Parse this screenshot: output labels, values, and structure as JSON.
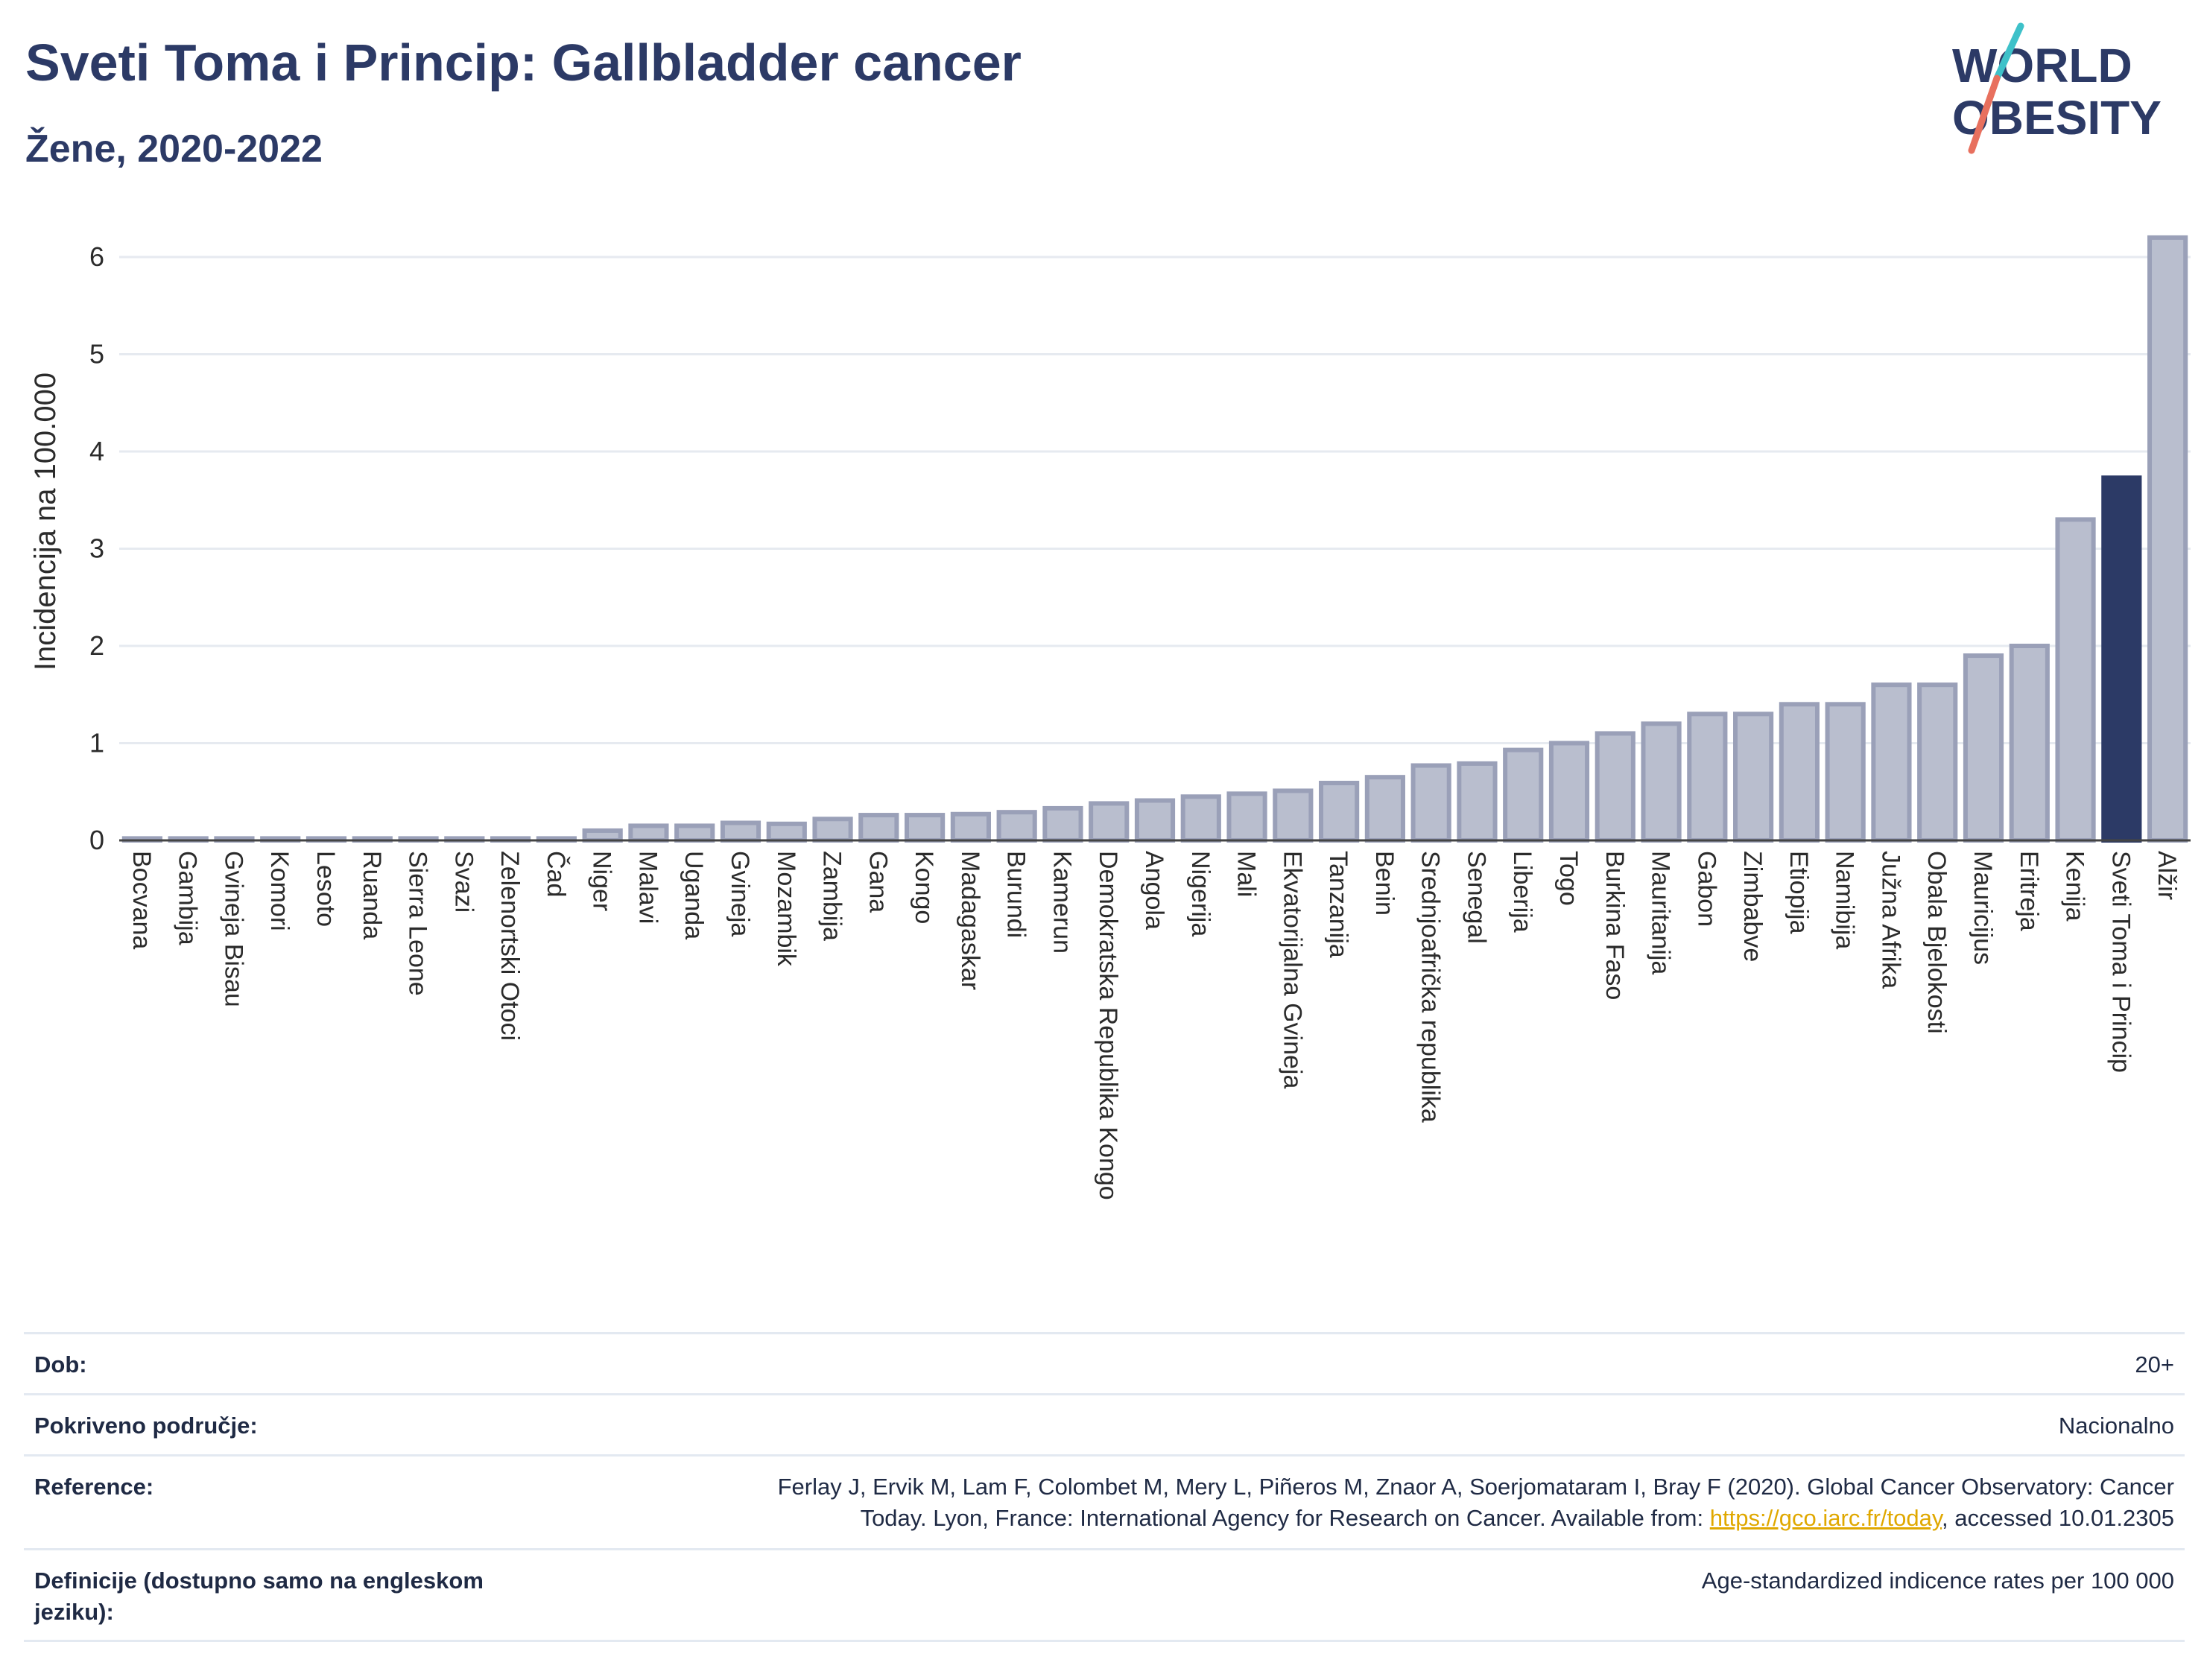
{
  "header": {
    "title": "Sveti Toma i Princip: Gallbladder cancer",
    "subtitle": "Žene, 2020-2022"
  },
  "logo": {
    "line1": "WORLD",
    "line2": "OBESITY",
    "colors": {
      "text": "#2c3a66",
      "slash_top": "#3ec1c9",
      "slash_bottom": "#e8705e"
    }
  },
  "chart_data": {
    "type": "bar",
    "ylabel": "Incidencija na 100.000",
    "xlabel": "",
    "ylim": [
      0,
      6.3
    ],
    "yticks": [
      0,
      1,
      2,
      3,
      4,
      5,
      6
    ],
    "grid": true,
    "highlight": "Sveti Toma i Princip",
    "colors": {
      "bar": "#b9bece",
      "bar_edge": "#9aa0b8",
      "highlight": "#2c3a66"
    },
    "categories": [
      "Bocvana",
      "Gambija",
      "Gvineja Bisau",
      "Komori",
      "Lesoto",
      "Ruanda",
      "Sierra Leone",
      "Svazi",
      "Zelenortski Otoci",
      "Čad",
      "Niger",
      "Malavi",
      "Uganda",
      "Gvineja",
      "Mozambik",
      "Zambija",
      "Gana",
      "Kongo",
      "Madagaskar",
      "Burundi",
      "Kamerun",
      "Demokratska Republika Kongo",
      "Angola",
      "Nigerija",
      "Mali",
      "Ekvatorijalna Gvineja",
      "Tanzanija",
      "Benin",
      "Srednjoafrička republika",
      "Senegal",
      "Liberija",
      "Togo",
      "Burkina Faso",
      "Mauritanija",
      "Gabon",
      "Zimbabve",
      "Etiopija",
      "Namibija",
      "Južna Afrika",
      "Obala Bjelokosti",
      "Mauricijus",
      "Eritreja",
      "Kenija",
      "Sveti Toma i Princip",
      "Alžir"
    ],
    "values": [
      0.02,
      0.02,
      0.02,
      0.02,
      0.02,
      0.02,
      0.02,
      0.02,
      0.02,
      0.02,
      0.1,
      0.15,
      0.15,
      0.18,
      0.17,
      0.22,
      0.26,
      0.26,
      0.27,
      0.29,
      0.33,
      0.38,
      0.41,
      0.45,
      0.48,
      0.51,
      0.59,
      0.65,
      0.77,
      0.79,
      0.93,
      1.0,
      1.1,
      1.2,
      1.3,
      1.3,
      1.4,
      1.4,
      1.6,
      1.6,
      1.9,
      2.0,
      3.3,
      3.73,
      6.2
    ]
  },
  "info": {
    "age_label": "Dob:",
    "age_value": "20+",
    "area_label": "Pokriveno područje:",
    "area_value": "Nacionalno",
    "ref_label": "Reference:",
    "ref_text_1": "Ferlay J, Ervik M, Lam F, Colombet M, Mery L, Piñeros M, Znaor A, Soerjomataram I, Bray F (2020). Global Cancer Observatory: Cancer",
    "ref_text_2": "Today. Lyon, France: International Agency for Research on Cancer. Available from: ",
    "ref_link": "https://gco.iarc.fr/today",
    "ref_text_3": ", accessed 10.01.2305",
    "def_label": "Definicije (dostupno samo na engleskom jeziku):",
    "def_value": "Age-standardized indicence rates per 100 000"
  }
}
